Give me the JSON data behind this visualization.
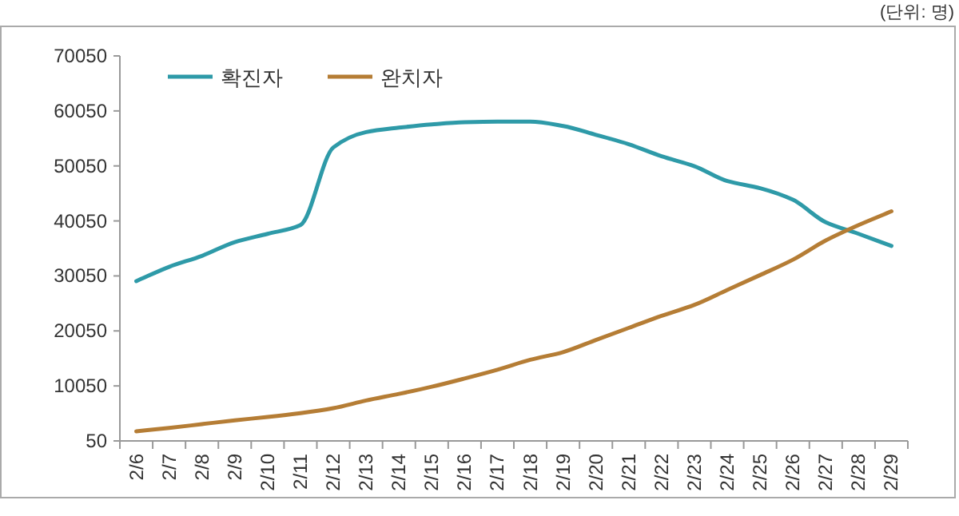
{
  "chart_data": {
    "type": "line",
    "annotations": [
      "(단위: 명)"
    ],
    "categories": [
      "2/6",
      "2/7",
      "2/8",
      "2/9",
      "2/10",
      "2/11",
      "2/12",
      "2/13",
      "2/14",
      "2/15",
      "2/16",
      "2/17",
      "2/18",
      "2/19",
      "2/20",
      "2/21",
      "2/22",
      "2/23",
      "2/24",
      "2/25",
      "2/26",
      "2/27",
      "2/28",
      "2/29"
    ],
    "series": [
      {
        "name": "확진자",
        "color": "#2e9aa8",
        "values": [
          29100,
          31700,
          33700,
          36200,
          37700,
          39300,
          53400,
          56200,
          57000,
          57600,
          58000,
          58100,
          58100,
          57300,
          55700,
          54000,
          51800,
          50000,
          47300,
          46000,
          43900,
          39800,
          37700,
          35500
        ]
      },
      {
        "name": "완치자",
        "color": "#b57d35",
        "values": [
          1800,
          2400,
          3100,
          3800,
          4400,
          5100,
          6000,
          7400,
          8600,
          9900,
          11400,
          13000,
          14800,
          16200,
          18400,
          20600,
          22800,
          24800,
          27500,
          30200,
          33000,
          36500,
          39300,
          41800
        ]
      }
    ],
    "ylim": [
      50,
      70050
    ],
    "yticks": [
      50,
      10050,
      20050,
      30050,
      40050,
      50050,
      60050,
      70050
    ],
    "legend": "top left",
    "grid": false
  }
}
